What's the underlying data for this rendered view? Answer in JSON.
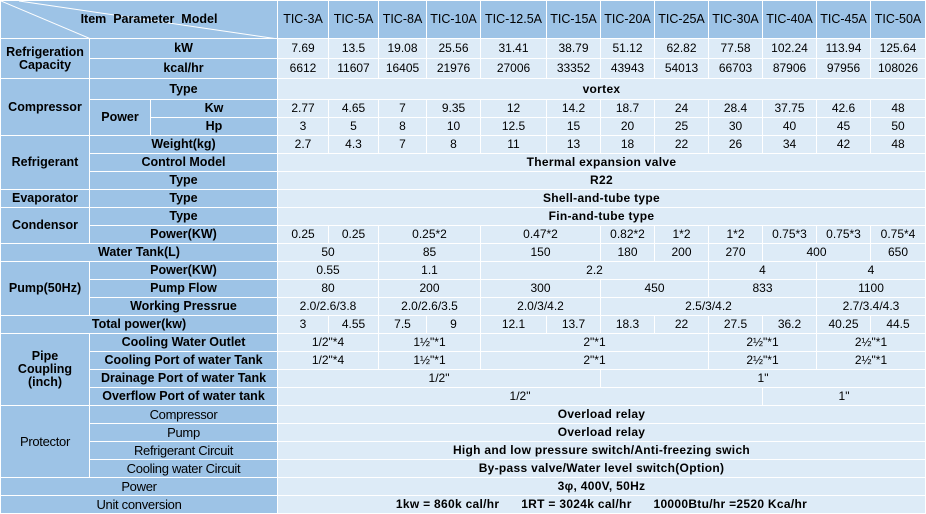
{
  "header": {
    "corner": "Item  Parameter  Model",
    "models": [
      "TIC-3A",
      "TIC-5A",
      "TIC-8A",
      "TIC-10A",
      "TIC-12.5A",
      "TIC-15A",
      "TIC-20A",
      "TIC-25A",
      "TIC-30A",
      "TIC-40A",
      "TIC-45A",
      "TIC-50A"
    ]
  },
  "colors": {
    "label_bg": "#9dc3e6",
    "value_bg": "#ddebf7",
    "border": "#ffffff"
  },
  "rows": [
    {
      "labels": [
        "Refrigeration\nCapacity",
        "kW"
      ],
      "values": [
        [
          "7.69",
          1
        ],
        [
          "13.5",
          1
        ],
        [
          "19.08",
          1
        ],
        [
          "25.56",
          1
        ],
        [
          "31.41",
          1
        ],
        [
          "38.79",
          1
        ],
        [
          "51.12",
          1
        ],
        [
          "62.82",
          1
        ],
        [
          "77.58",
          1
        ],
        [
          "102.24",
          1
        ],
        [
          "113.94",
          1
        ],
        [
          "125.64",
          1
        ]
      ]
    },
    {
      "labels": [
        "kcal/hr"
      ],
      "values": [
        [
          "6612",
          1
        ],
        [
          "11607",
          1
        ],
        [
          "16405",
          1
        ],
        [
          "21976",
          1
        ],
        [
          "27006",
          1
        ],
        [
          "33352",
          1
        ],
        [
          "43943",
          1
        ],
        [
          "54013",
          1
        ],
        [
          "66703",
          1
        ],
        [
          "87906",
          1
        ],
        [
          "97956",
          1
        ],
        [
          "108026",
          1
        ]
      ]
    },
    {
      "labels": [
        "Compressor",
        "Type"
      ],
      "values": [
        [
          "vortex",
          12
        ]
      ]
    },
    {
      "labels": [
        "Power",
        "Kw"
      ],
      "values": [
        [
          "2.77",
          1
        ],
        [
          "4.65",
          1
        ],
        [
          "7",
          1
        ],
        [
          "9.35",
          1
        ],
        [
          "12",
          1
        ],
        [
          "14.2",
          1
        ],
        [
          "18.7",
          1
        ],
        [
          "24",
          1
        ],
        [
          "28.4",
          1
        ],
        [
          "37.75",
          1
        ],
        [
          "42.6",
          1
        ],
        [
          "48",
          1
        ]
      ]
    },
    {
      "labels": [
        "Hp"
      ],
      "values": [
        [
          "3",
          1
        ],
        [
          "5",
          1
        ],
        [
          "8",
          1
        ],
        [
          "10",
          1
        ],
        [
          "12.5",
          1
        ],
        [
          "15",
          1
        ],
        [
          "20",
          1
        ],
        [
          "25",
          1
        ],
        [
          "30",
          1
        ],
        [
          "40",
          1
        ],
        [
          "45",
          1
        ],
        [
          "50",
          1
        ]
      ]
    },
    {
      "labels": [
        "Refrigerant",
        "Weight(kg)"
      ],
      "values": [
        [
          "2.7",
          1
        ],
        [
          "4.3",
          1
        ],
        [
          "7",
          1
        ],
        [
          "8",
          1
        ],
        [
          "11",
          1
        ],
        [
          "13",
          1
        ],
        [
          "18",
          1
        ],
        [
          "22",
          1
        ],
        [
          "26",
          1
        ],
        [
          "34",
          1
        ],
        [
          "42",
          1
        ],
        [
          "48",
          1
        ]
      ]
    },
    {
      "labels": [
        "Control Model"
      ],
      "values": [
        [
          "Thermal expansion valve",
          12
        ]
      ]
    },
    {
      "labels": [
        "Type"
      ],
      "values": [
        [
          "R22",
          12
        ]
      ]
    },
    {
      "labels": [
        "Evaporator",
        "Type"
      ],
      "values": [
        [
          "Shell-and-tube type",
          12
        ]
      ]
    },
    {
      "labels": [
        "Condensor",
        "Type"
      ],
      "values": [
        [
          "Fin-and-tube type",
          12
        ]
      ]
    },
    {
      "labels": [
        "Power(KW)"
      ],
      "values": [
        [
          "0.25",
          1
        ],
        [
          "0.25",
          1
        ],
        [
          "0.25*2",
          2
        ],
        [
          "0.47*2",
          2
        ],
        [
          "0.82*2",
          1
        ],
        [
          "1*2",
          1
        ],
        [
          "1*2",
          1
        ],
        [
          "0.75*3",
          1
        ],
        [
          "0.75*3",
          1
        ],
        [
          "0.75*4",
          1
        ]
      ]
    },
    {
      "labels": [
        "Water Tank(L)"
      ],
      "values": [
        [
          "50",
          2
        ],
        [
          "85",
          2
        ],
        [
          "150",
          2
        ],
        [
          "180",
          1
        ],
        [
          "200",
          1
        ],
        [
          "270",
          1
        ],
        [
          "400",
          2
        ],
        [
          "650",
          1
        ]
      ]
    },
    {
      "labels": [
        "Pump(50Hz)",
        "Power(KW)"
      ],
      "values": [
        [
          "0.55",
          2
        ],
        [
          "1.1",
          2
        ],
        [
          "2.2",
          4
        ],
        [
          "4",
          2
        ],
        [
          "4",
          2
        ]
      ]
    },
    {
      "labels": [
        "Pump Flow"
      ],
      "values": [
        [
          "80",
          2
        ],
        [
          "200",
          2
        ],
        [
          "300",
          2
        ],
        [
          "450",
          2
        ],
        [
          "833",
          2
        ],
        [
          "1100",
          2
        ]
      ]
    },
    {
      "labels": [
        "Working Pressrue"
      ],
      "values": [
        [
          "2.0/2.6/3.8",
          2
        ],
        [
          "2.0/2.6/3.5",
          2
        ],
        [
          "2.0/3/4.2",
          2
        ],
        [
          "2.5/3/4.2",
          4
        ],
        [
          "2.7/3.4/4.3",
          2
        ]
      ]
    },
    {
      "labels": [
        "Total power(kw)"
      ],
      "values": [
        [
          "3",
          1
        ],
        [
          "4.55",
          1
        ],
        [
          "7.5",
          1
        ],
        [
          "9",
          1
        ],
        [
          "12.1",
          1
        ],
        [
          "13.7",
          1
        ],
        [
          "18.3",
          1
        ],
        [
          "22",
          1
        ],
        [
          "27.5",
          1
        ],
        [
          "36.2",
          1
        ],
        [
          "40.25",
          1
        ],
        [
          "44.5",
          1
        ]
      ]
    },
    {
      "labels": [
        "Pipe\nCoupling\n(inch)",
        "Cooling Water Outlet"
      ],
      "values": [
        [
          "1/2\"*4",
          2
        ],
        [
          "1½\"*1",
          2
        ],
        [
          "2\"*1",
          4
        ],
        [
          "2½\"*1",
          2
        ],
        [
          "2½\"*1",
          2
        ]
      ]
    },
    {
      "labels": [
        "Cooling Port of water Tank"
      ],
      "values": [
        [
          "1/2\"*4",
          2
        ],
        [
          "1½\"*1",
          2
        ],
        [
          "2\"*1",
          4
        ],
        [
          "2½\"*1",
          2
        ],
        [
          "2½\"*1",
          2
        ]
      ]
    },
    {
      "labels": [
        "Drainage Port of water Tank"
      ],
      "values": [
        [
          "1/2\"",
          6
        ],
        [
          "1\"",
          6
        ]
      ]
    },
    {
      "labels": [
        "Overflow Port of water tank"
      ],
      "values": [
        [
          "1/2\"",
          9
        ],
        [
          "1\"",
          3
        ]
      ]
    },
    {
      "labels": [
        "Protector",
        "Compressor"
      ],
      "values": [
        [
          "Overload relay",
          12
        ]
      ]
    },
    {
      "labels": [
        "Pump"
      ],
      "values": [
        [
          "Overload relay",
          12
        ]
      ]
    },
    {
      "labels": [
        "Refrigerant Circuit"
      ],
      "values": [
        [
          "High and low pressure switch/Anti-freezing swich",
          12
        ]
      ]
    },
    {
      "labels": [
        "Cooling water Circuit"
      ],
      "values": [
        [
          "By-pass valve/Water level switch(Option)",
          12
        ]
      ]
    },
    {
      "labels": [
        "Power"
      ],
      "values": [
        [
          "3φ, 400V, 50Hz",
          12
        ]
      ]
    },
    {
      "labels": [
        "Unit conversion"
      ],
      "values": [
        [
          "1kw = 860k cal/hr      1RT = 3024k cal/hr      10000Btu/hr =2520 Kca/hr",
          12
        ]
      ]
    }
  ]
}
